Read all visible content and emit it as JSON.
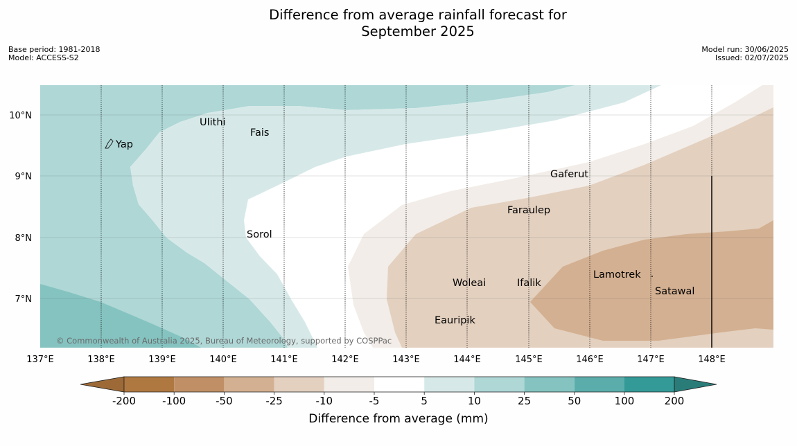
{
  "title_line1": "Difference from average rainfall forecast for",
  "title_line2": "September 2025",
  "base_period": "Base period: 1981-2018",
  "model": "Model: ACCESS-S2",
  "model_run": "Model run: 30/06/2025",
  "issued": "Issued: 02/07/2025",
  "copyright": "© Commonwealth of Australia 2025, Bureau of Meteorology, supported by COSPPac",
  "map": {
    "lon_labels": [
      "137°E",
      "138°E",
      "139°E",
      "140°E",
      "141°E",
      "142°E",
      "143°E",
      "144°E",
      "145°E",
      "146°E",
      "147°E",
      "148°E"
    ],
    "lat_labels": [
      "10°N",
      "9°N",
      "8°N",
      "7°N"
    ],
    "places": {
      "yap": "Yap",
      "ulithi": "Ulithi",
      "fais": "Fais",
      "sorol": "Sorol",
      "gaferut": "Gaferut",
      "faraulep": "Faraulep",
      "woleai": "Woleai",
      "ifalik": "Ifalik",
      "lamotrek": "Lamotrek",
      "satawal": "Satawal",
      "eauripik": "Eauripik"
    }
  },
  "colorbar": {
    "tick_labels": [
      "-200",
      "-100",
      "-50",
      "-25",
      "-10",
      "-5",
      "5",
      "10",
      "25",
      "50",
      "100",
      "200"
    ],
    "colors": {
      "lt_minus200": "#9d6a37",
      "c1": "#b07841",
      "c2": "#c08f65",
      "c3": "#d3b091",
      "c4": "#e3d0bf",
      "c5": "#f2ede8",
      "c6": "#ffffff",
      "c7": "#d6e9e8",
      "c8": "#aed7d6",
      "c9": "#84c3c0",
      "c10": "#5aadaa",
      "c11": "#349a97",
      "gt_200": "#2a7c79"
    },
    "label": "Difference from average (mm)"
  }
}
